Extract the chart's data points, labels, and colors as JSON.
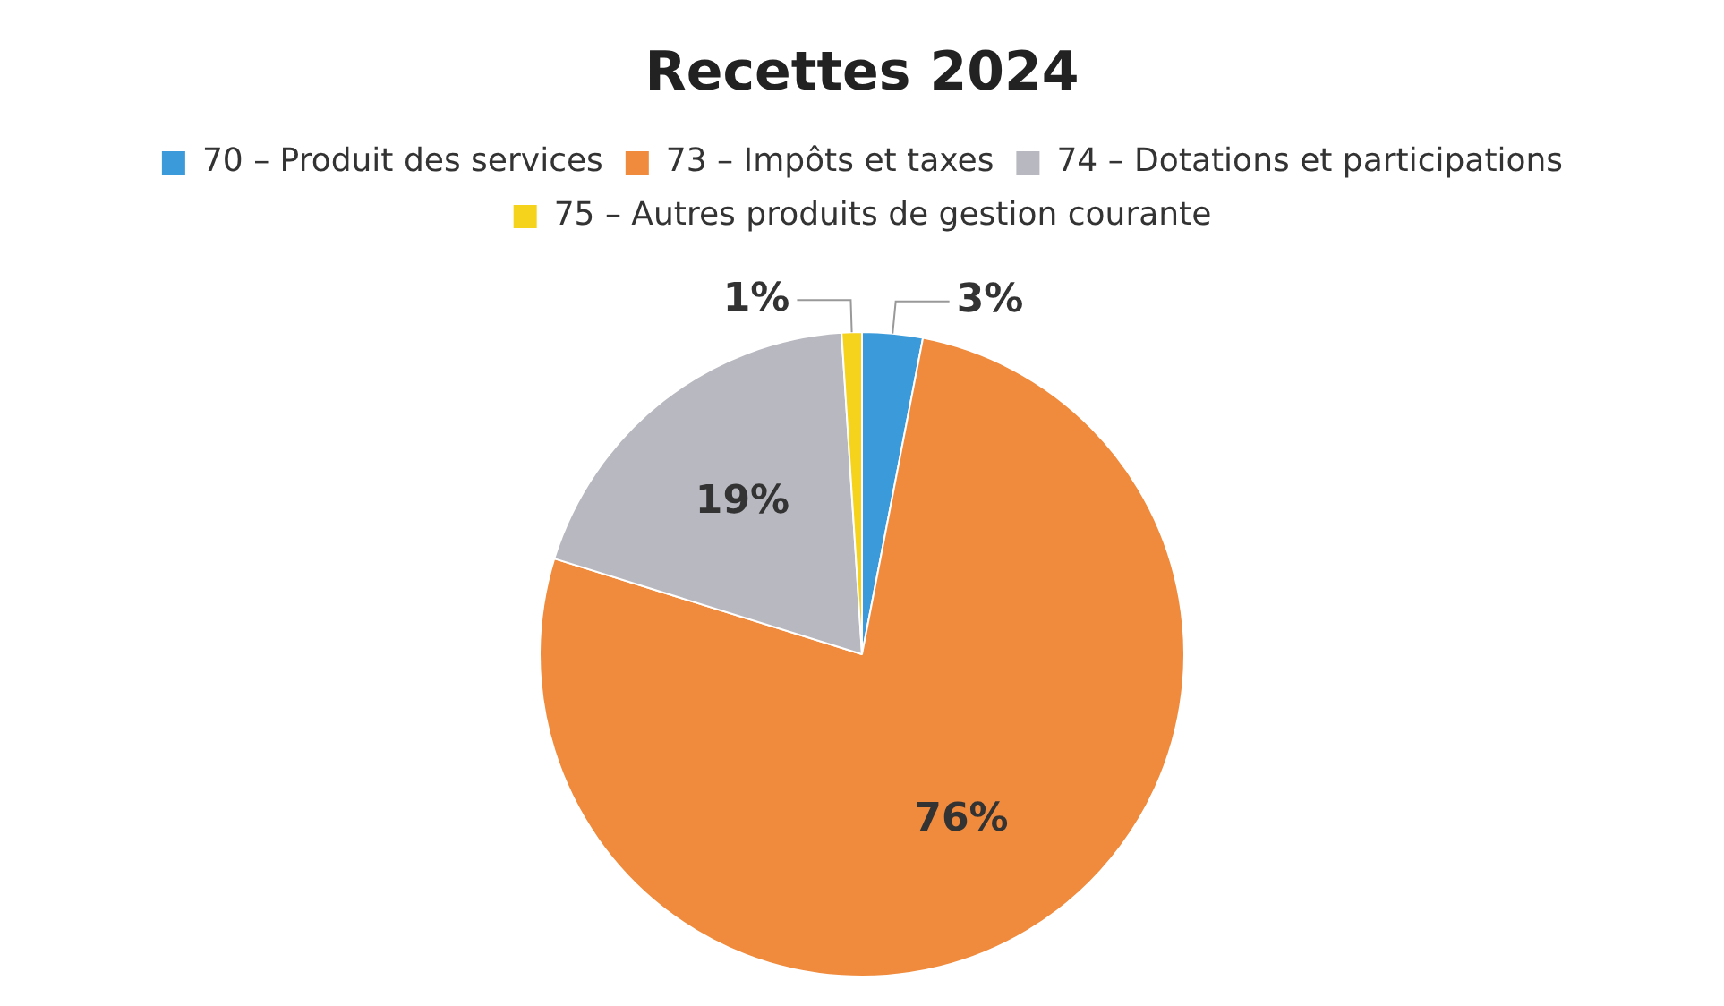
{
  "chart_data": {
    "type": "pie",
    "title": "Recettes 2024",
    "categories": [
      "70 – Produit des services",
      "73 – Impôts et taxes",
      "74 – Dotations et participations",
      "75 – Autres produits de gestion courante"
    ],
    "values": [
      3,
      76,
      19,
      1
    ],
    "colors": [
      "#3b9ad9",
      "#f08a3c",
      "#b8b8c0",
      "#f5d21c"
    ],
    "value_labels": [
      "3%",
      "76%",
      "19%",
      "1%"
    ],
    "legend": "top"
  }
}
